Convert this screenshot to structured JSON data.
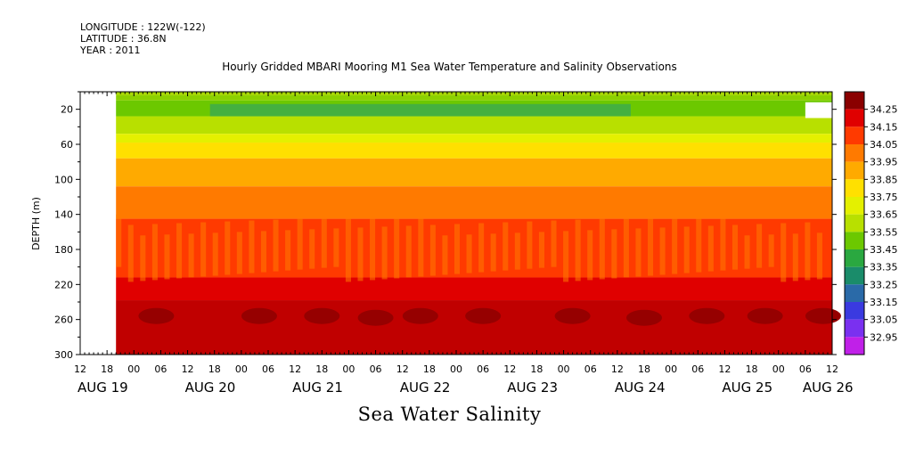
{
  "header": {
    "longitude": "LONGITUDE : 122W(-122)",
    "latitude": "LATITUDE : 36.8N",
    "year": "YEAR : 2011"
  },
  "chart_data": {
    "type": "heatmap",
    "title": "Hourly Gridded MBARI Mooring M1 Sea Water Temperature and Salinity Observations",
    "variable": "Sea Water Salinity",
    "ylabel": "DEPTH (m)",
    "xlabel": "",
    "y_reversed": true,
    "ylim": [
      300,
      0
    ],
    "y_ticks": [
      20,
      60,
      100,
      140,
      180,
      220,
      260,
      300
    ],
    "x_range_hours": [
      -12,
      156
    ],
    "x_hour_ticks": [
      {
        "h": -12,
        "label": "12"
      },
      {
        "h": -6,
        "label": "18"
      },
      {
        "h": 0,
        "label": "00"
      },
      {
        "h": 6,
        "label": "06"
      },
      {
        "h": 12,
        "label": "12"
      },
      {
        "h": 18,
        "label": "18"
      },
      {
        "h": 24,
        "label": "00"
      },
      {
        "h": 30,
        "label": "06"
      },
      {
        "h": 36,
        "label": "12"
      },
      {
        "h": 42,
        "label": "18"
      },
      {
        "h": 48,
        "label": "00"
      },
      {
        "h": 54,
        "label": "06"
      },
      {
        "h": 60,
        "label": "12"
      },
      {
        "h": 66,
        "label": "18"
      },
      {
        "h": 72,
        "label": "00"
      },
      {
        "h": 78,
        "label": "06"
      },
      {
        "h": 84,
        "label": "12"
      },
      {
        "h": 90,
        "label": "18"
      },
      {
        "h": 96,
        "label": "00"
      },
      {
        "h": 102,
        "label": "06"
      },
      {
        "h": 108,
        "label": "12"
      },
      {
        "h": 114,
        "label": "18"
      },
      {
        "h": 120,
        "label": "00"
      },
      {
        "h": 126,
        "label": "06"
      },
      {
        "h": 132,
        "label": "12"
      },
      {
        "h": 138,
        "label": "18"
      },
      {
        "h": 144,
        "label": "00"
      },
      {
        "h": 150,
        "label": "06"
      },
      {
        "h": 156,
        "label": "12"
      }
    ],
    "x_day_labels": [
      {
        "h": -12,
        "label": "AUG 19"
      },
      {
        "h": 12,
        "label": "AUG 20"
      },
      {
        "h": 36,
        "label": "AUG 21"
      },
      {
        "h": 60,
        "label": "AUG 22"
      },
      {
        "h": 84,
        "label": "AUG 23"
      },
      {
        "h": 108,
        "label": "AUG 24"
      },
      {
        "h": 132,
        "label": "AUG 25"
      },
      {
        "h": 150,
        "label": "AUG 26"
      }
    ],
    "data_start_hour": -4,
    "levels": [
      {
        "value": "34.25",
        "color": "#b80000"
      },
      {
        "value": "34.15",
        "color": "#e00000"
      },
      {
        "value": "34.05",
        "color": "#ff3a00"
      },
      {
        "value": "33.95",
        "color": "#ff7a00"
      },
      {
        "value": "33.85",
        "color": "#ffaa00"
      },
      {
        "value": "33.75",
        "color": "#ffe000"
      },
      {
        "value": "33.65",
        "color": "#e4f000"
      },
      {
        "value": "33.55",
        "color": "#b8e000"
      },
      {
        "value": "33.45",
        "color": "#6cc800"
      },
      {
        "value": "33.35",
        "color": "#2aa840"
      },
      {
        "value": "33.25",
        "color": "#1a8c6a"
      },
      {
        "value": "33.15",
        "color": "#2a6aa8"
      },
      {
        "value": "33.05",
        "color": "#3a3ae0"
      },
      {
        "value": "32.95",
        "color": "#7a30f0"
      }
    ],
    "top_color": "#8a0000",
    "bottom_color": "#c020e8",
    "depth_bands": [
      {
        "from": 0,
        "to": 4,
        "color": "#a8d800"
      },
      {
        "from": 4,
        "to": 10,
        "color": "#8cd000"
      },
      {
        "from": 10,
        "to": 28,
        "color": "#6cc800"
      },
      {
        "from": 28,
        "to": 48,
        "color": "#b8e000"
      },
      {
        "from": 48,
        "to": 58,
        "color": "#e4f000"
      },
      {
        "from": 58,
        "to": 76,
        "color": "#ffe000"
      },
      {
        "from": 76,
        "to": 108,
        "color": "#ffaa00"
      },
      {
        "from": 108,
        "to": 145,
        "color": "#ff7a00"
      },
      {
        "from": 145,
        "to": 212,
        "color": "#ff3a00"
      },
      {
        "from": 212,
        "to": 238,
        "color": "#e00000"
      },
      {
        "from": 238,
        "to": 300,
        "color": "#c00000"
      }
    ],
    "low_salinity_layer": {
      "from_hour": 17,
      "to_hour": 111,
      "depth_from": 14,
      "depth_to": 28,
      "color": "#44b040"
    },
    "max_salinity_blobs": [
      {
        "center_hour": 5,
        "center_depth": 256,
        "color": "#960000"
      },
      {
        "center_hour": 28,
        "center_depth": 256,
        "color": "#960000"
      },
      {
        "center_hour": 42,
        "center_depth": 256,
        "color": "#960000"
      },
      {
        "center_hour": 54,
        "center_depth": 258,
        "color": "#960000"
      },
      {
        "center_hour": 64,
        "center_depth": 256,
        "color": "#960000"
      },
      {
        "center_hour": 78,
        "center_depth": 256,
        "color": "#960000"
      },
      {
        "center_hour": 98,
        "center_depth": 256,
        "color": "#960000"
      },
      {
        "center_hour": 114,
        "center_depth": 258,
        "color": "#960000"
      },
      {
        "center_hour": 128,
        "center_depth": 256,
        "color": "#960000"
      },
      {
        "center_hour": 141,
        "center_depth": 256,
        "color": "#960000"
      },
      {
        "center_hour": 154,
        "center_depth": 256,
        "color": "#960000"
      }
    ]
  }
}
